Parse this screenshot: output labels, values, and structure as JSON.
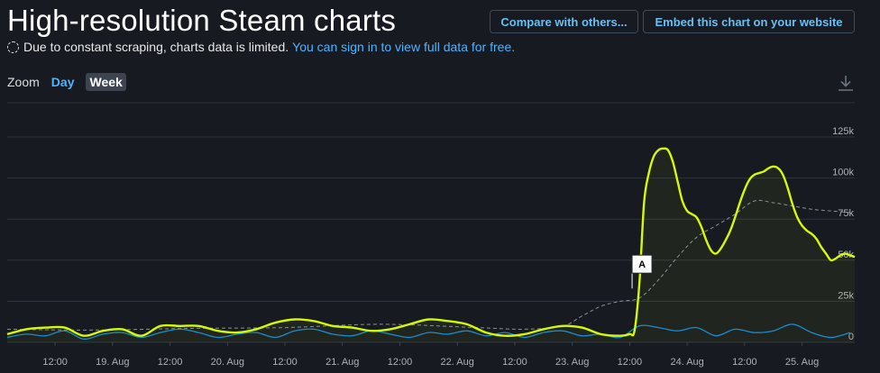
{
  "header": {
    "title": "High-resolution Steam charts",
    "compare_label": "Compare with others...",
    "embed_label": "Embed this chart on your website"
  },
  "notice": {
    "text": "Due to constant scraping, charts data is limited.",
    "link_text": "You can sign in to view full data for free."
  },
  "zoom": {
    "label": "Zoom",
    "options": [
      "Day",
      "Week"
    ],
    "selected": "Week"
  },
  "icons": {
    "download": "download-icon"
  },
  "colors": {
    "background": "#171a21",
    "players_line": "#d4fa00",
    "twitch_line": "#1a8ccf",
    "average_line": "#8a8f96",
    "link": "#4cb4ff"
  },
  "chart_data": {
    "type": "line",
    "y_ticks": [
      "0",
      "25k",
      "50k",
      "75k",
      "100k",
      "125k"
    ],
    "y_tick_values": [
      0,
      25000,
      50000,
      75000,
      100000,
      125000
    ],
    "ylim": [
      0,
      125000
    ],
    "x_ticks": [
      "12:00",
      "19. Aug",
      "12:00",
      "20. Aug",
      "12:00",
      "21. Aug",
      "12:00",
      "22. Aug",
      "12:00",
      "23. Aug",
      "12:00",
      "24. Aug",
      "12:00",
      "25. Aug"
    ],
    "x_tick_hours": [
      12,
      24,
      36,
      48,
      60,
      72,
      84,
      96,
      108,
      120,
      132,
      144,
      156,
      168
    ],
    "x_range_hours": [
      2,
      179
    ],
    "grid": true,
    "annotation": {
      "label": "A",
      "hour": 132.5,
      "value": 35000
    },
    "series": [
      {
        "x": [
          2,
          6,
          10,
          14,
          18,
          22,
          26,
          30,
          34,
          38,
          42,
          46,
          50,
          54,
          58,
          62,
          66,
          70,
          74,
          78,
          82,
          86,
          90,
          94,
          98,
          102,
          106,
          110,
          114,
          118,
          122,
          126,
          130,
          132,
          133,
          134,
          135,
          136,
          137,
          138,
          139,
          140,
          141,
          142,
          143,
          144,
          145,
          146,
          147,
          148,
          149,
          150,
          151,
          152,
          153,
          154,
          155,
          156,
          157,
          158,
          159,
          160,
          161,
          162,
          163,
          164,
          165,
          166,
          167,
          168,
          169,
          170,
          171,
          172,
          173,
          174,
          175,
          176,
          177,
          178,
          179
        ],
        "values": [
          5000,
          8000,
          9000,
          9000,
          4000,
          7000,
          8000,
          4000,
          10000,
          10000,
          10000,
          7000,
          6000,
          8000,
          12000,
          14000,
          13000,
          10000,
          9000,
          7000,
          8000,
          11000,
          14000,
          13000,
          11000,
          6000,
          4000,
          5000,
          8000,
          10000,
          9000,
          5000,
          4000,
          5000,
          7000,
          35000,
          85000,
          103000,
          113000,
          117000,
          118000,
          117000,
          110000,
          98000,
          86000,
          80000,
          78000,
          76000,
          70000,
          62000,
          56000,
          54000,
          57000,
          62000,
          68000,
          76000,
          85000,
          93000,
          99000,
          102000,
          103000,
          104000,
          106000,
          107000,
          106000,
          102000,
          94000,
          84000,
          76000,
          71000,
          68000,
          66000,
          63000,
          58000,
          54000,
          50000,
          51000,
          53000,
          54000,
          53000,
          52000
        ]
      },
      {
        "x": [
          2,
          20,
          40,
          60,
          80,
          100,
          110,
          118,
          122,
          126,
          130,
          134,
          138,
          142,
          146,
          150,
          154,
          158,
          162,
          166,
          170,
          174,
          178
        ],
        "values": [
          8000,
          7500,
          8500,
          9000,
          11000,
          9000,
          8000,
          10000,
          16000,
          22000,
          25000,
          27000,
          38000,
          52000,
          64000,
          71000,
          78000,
          86000,
          85000,
          83000,
          81000,
          80000,
          79000
        ]
      },
      {
        "x": [
          2,
          6,
          10,
          14,
          18,
          22,
          26,
          30,
          34,
          38,
          42,
          46,
          50,
          54,
          58,
          62,
          66,
          70,
          74,
          78,
          82,
          86,
          90,
          94,
          98,
          102,
          106,
          110,
          114,
          118,
          122,
          126,
          130,
          134,
          138,
          142,
          146,
          150,
          154,
          158,
          162,
          166,
          170,
          174,
          178
        ],
        "values": [
          3000,
          5000,
          4000,
          7000,
          2000,
          5000,
          6000,
          3000,
          6000,
          8000,
          6000,
          3000,
          5000,
          6000,
          3000,
          7000,
          8000,
          5000,
          4000,
          7000,
          5000,
          3000,
          6000,
          5000,
          7000,
          4000,
          6000,
          3000,
          6000,
          7000,
          4000,
          5000,
          3000,
          10000,
          9000,
          7000,
          9000,
          4000,
          8000,
          6000,
          7000,
          11000,
          6000,
          3000,
          6000
        ]
      }
    ]
  }
}
